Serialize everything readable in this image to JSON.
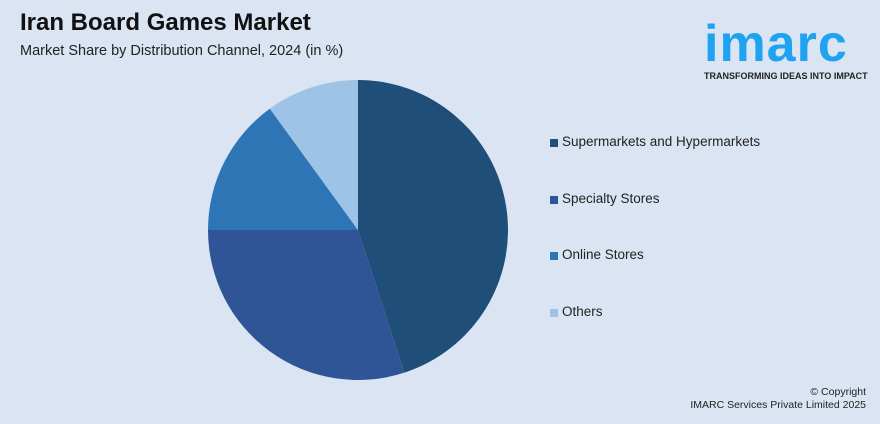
{
  "header": {
    "title": "Iran Board Games Market",
    "subtitle": "Market Share by Distribution Channel, 2024 (in %)"
  },
  "logo": {
    "word": "imarc",
    "tagline": "TRANSFORMING IDEAS INTO IMPACT",
    "color": "#1fa3f0"
  },
  "chart_data": {
    "type": "pie",
    "title": "Iran Board Games Market",
    "subtitle": "Market Share by Distribution Channel, 2024 (in %)",
    "categories": [
      "Supermarkets and Hypermarkets",
      "Specialty Stores",
      "Online Stores",
      "Others"
    ],
    "values": [
      45,
      30,
      15,
      10
    ],
    "colors": [
      "#1f4e79",
      "#2f5597",
      "#2e75b6",
      "#9dc3e6"
    ],
    "start": "top, clockwise",
    "legend": "right"
  },
  "footer": {
    "line1": "© Copyright",
    "line2": "IMARC Services Private Limited 2025"
  }
}
